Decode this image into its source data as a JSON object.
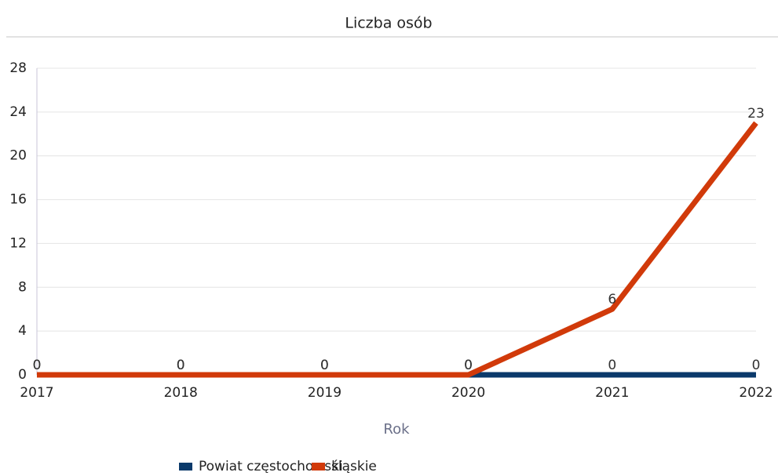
{
  "chart_data": {
    "type": "line",
    "title": "Liczba osób",
    "x_label": "Rok",
    "x": [
      2017,
      2018,
      2019,
      2020,
      2021,
      2022
    ],
    "xlim": [
      2017,
      2022
    ],
    "xticks": [
      2017,
      2018,
      2019,
      2020,
      2021,
      2022
    ],
    "ylim": [
      0,
      28
    ],
    "yticks": [
      0,
      4,
      8,
      12,
      16,
      20,
      24,
      28
    ],
    "grid": true,
    "legend": "bottom",
    "series": [
      {
        "name": "Powiat częstochowski",
        "color": "#0b3a6b",
        "values": [
          0,
          0,
          0,
          0,
          0,
          0
        ]
      },
      {
        "name": "śląskie",
        "color": "#d13a0a",
        "values": [
          0,
          0,
          0,
          0,
          6,
          23
        ]
      }
    ]
  }
}
